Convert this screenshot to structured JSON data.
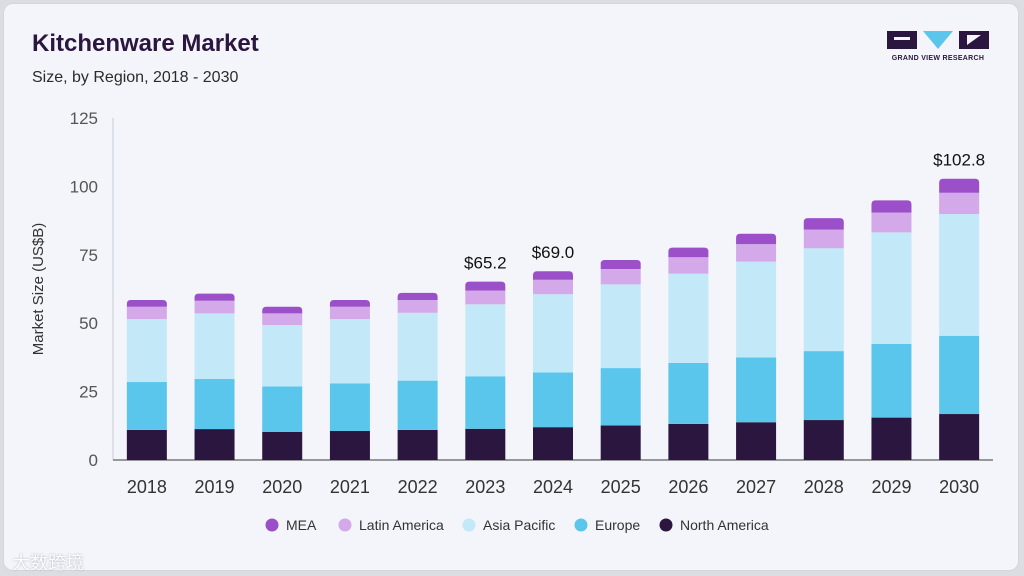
{
  "header": {
    "title": "Kitchenware Market",
    "subtitle": "Size, by Region, 2018 - 2030"
  },
  "logo": {
    "text": "GRAND VIEW RESEARCH"
  },
  "watermark": {
    "text": "大数跨境"
  },
  "colors": {
    "MEA": "#9b4fc8",
    "Latin America": "#d4a9ea",
    "Asia Pacific": "#c3e8f7",
    "Europe": "#5bc6ec",
    "North America": "#2b1640"
  },
  "chart_data": {
    "type": "bar",
    "stacked": true,
    "title": "Kitchenware Market",
    "subtitle": "Size, by Region, 2018 - 2030",
    "xlabel": "",
    "ylabel": "Market Size (US$B)",
    "ylim": [
      0,
      125
    ],
    "yticks": [
      0,
      25,
      50,
      75,
      100,
      125
    ],
    "grid": false,
    "legend_position": "bottom",
    "categories": [
      "2018",
      "2019",
      "2020",
      "2021",
      "2022",
      "2023",
      "2024",
      "2025",
      "2026",
      "2027",
      "2028",
      "2029",
      "2030"
    ],
    "series": [
      {
        "name": "North America",
        "values": [
          11.0,
          11.3,
          10.3,
          10.6,
          11.0,
          11.4,
          12.0,
          12.6,
          13.2,
          13.8,
          14.6,
          15.5,
          16.8
        ]
      },
      {
        "name": "Europe",
        "values": [
          17.5,
          18.3,
          16.6,
          17.4,
          18.0,
          19.2,
          20.0,
          21.0,
          22.3,
          23.7,
          25.2,
          26.9,
          28.6
        ]
      },
      {
        "name": "Asia Pacific",
        "values": [
          23.0,
          24.0,
          22.4,
          23.5,
          24.8,
          26.3,
          28.6,
          30.6,
          32.6,
          35.0,
          37.6,
          40.8,
          44.5
        ]
      },
      {
        "name": "Latin America",
        "values": [
          4.5,
          4.6,
          4.3,
          4.5,
          4.7,
          5.0,
          5.3,
          5.6,
          6.0,
          6.4,
          6.8,
          7.2,
          7.8
        ]
      },
      {
        "name": "MEA",
        "values": [
          2.5,
          2.6,
          2.4,
          2.5,
          2.6,
          3.3,
          3.1,
          3.3,
          3.5,
          3.8,
          4.2,
          4.5,
          5.1
        ]
      }
    ],
    "annotations": [
      {
        "category": "2023",
        "text": "$65.2"
      },
      {
        "category": "2024",
        "text": "$69.0"
      },
      {
        "category": "2030",
        "text": "$102.8"
      }
    ],
    "legend_order": [
      "MEA",
      "Latin America",
      "Asia Pacific",
      "Europe",
      "North America"
    ]
  }
}
